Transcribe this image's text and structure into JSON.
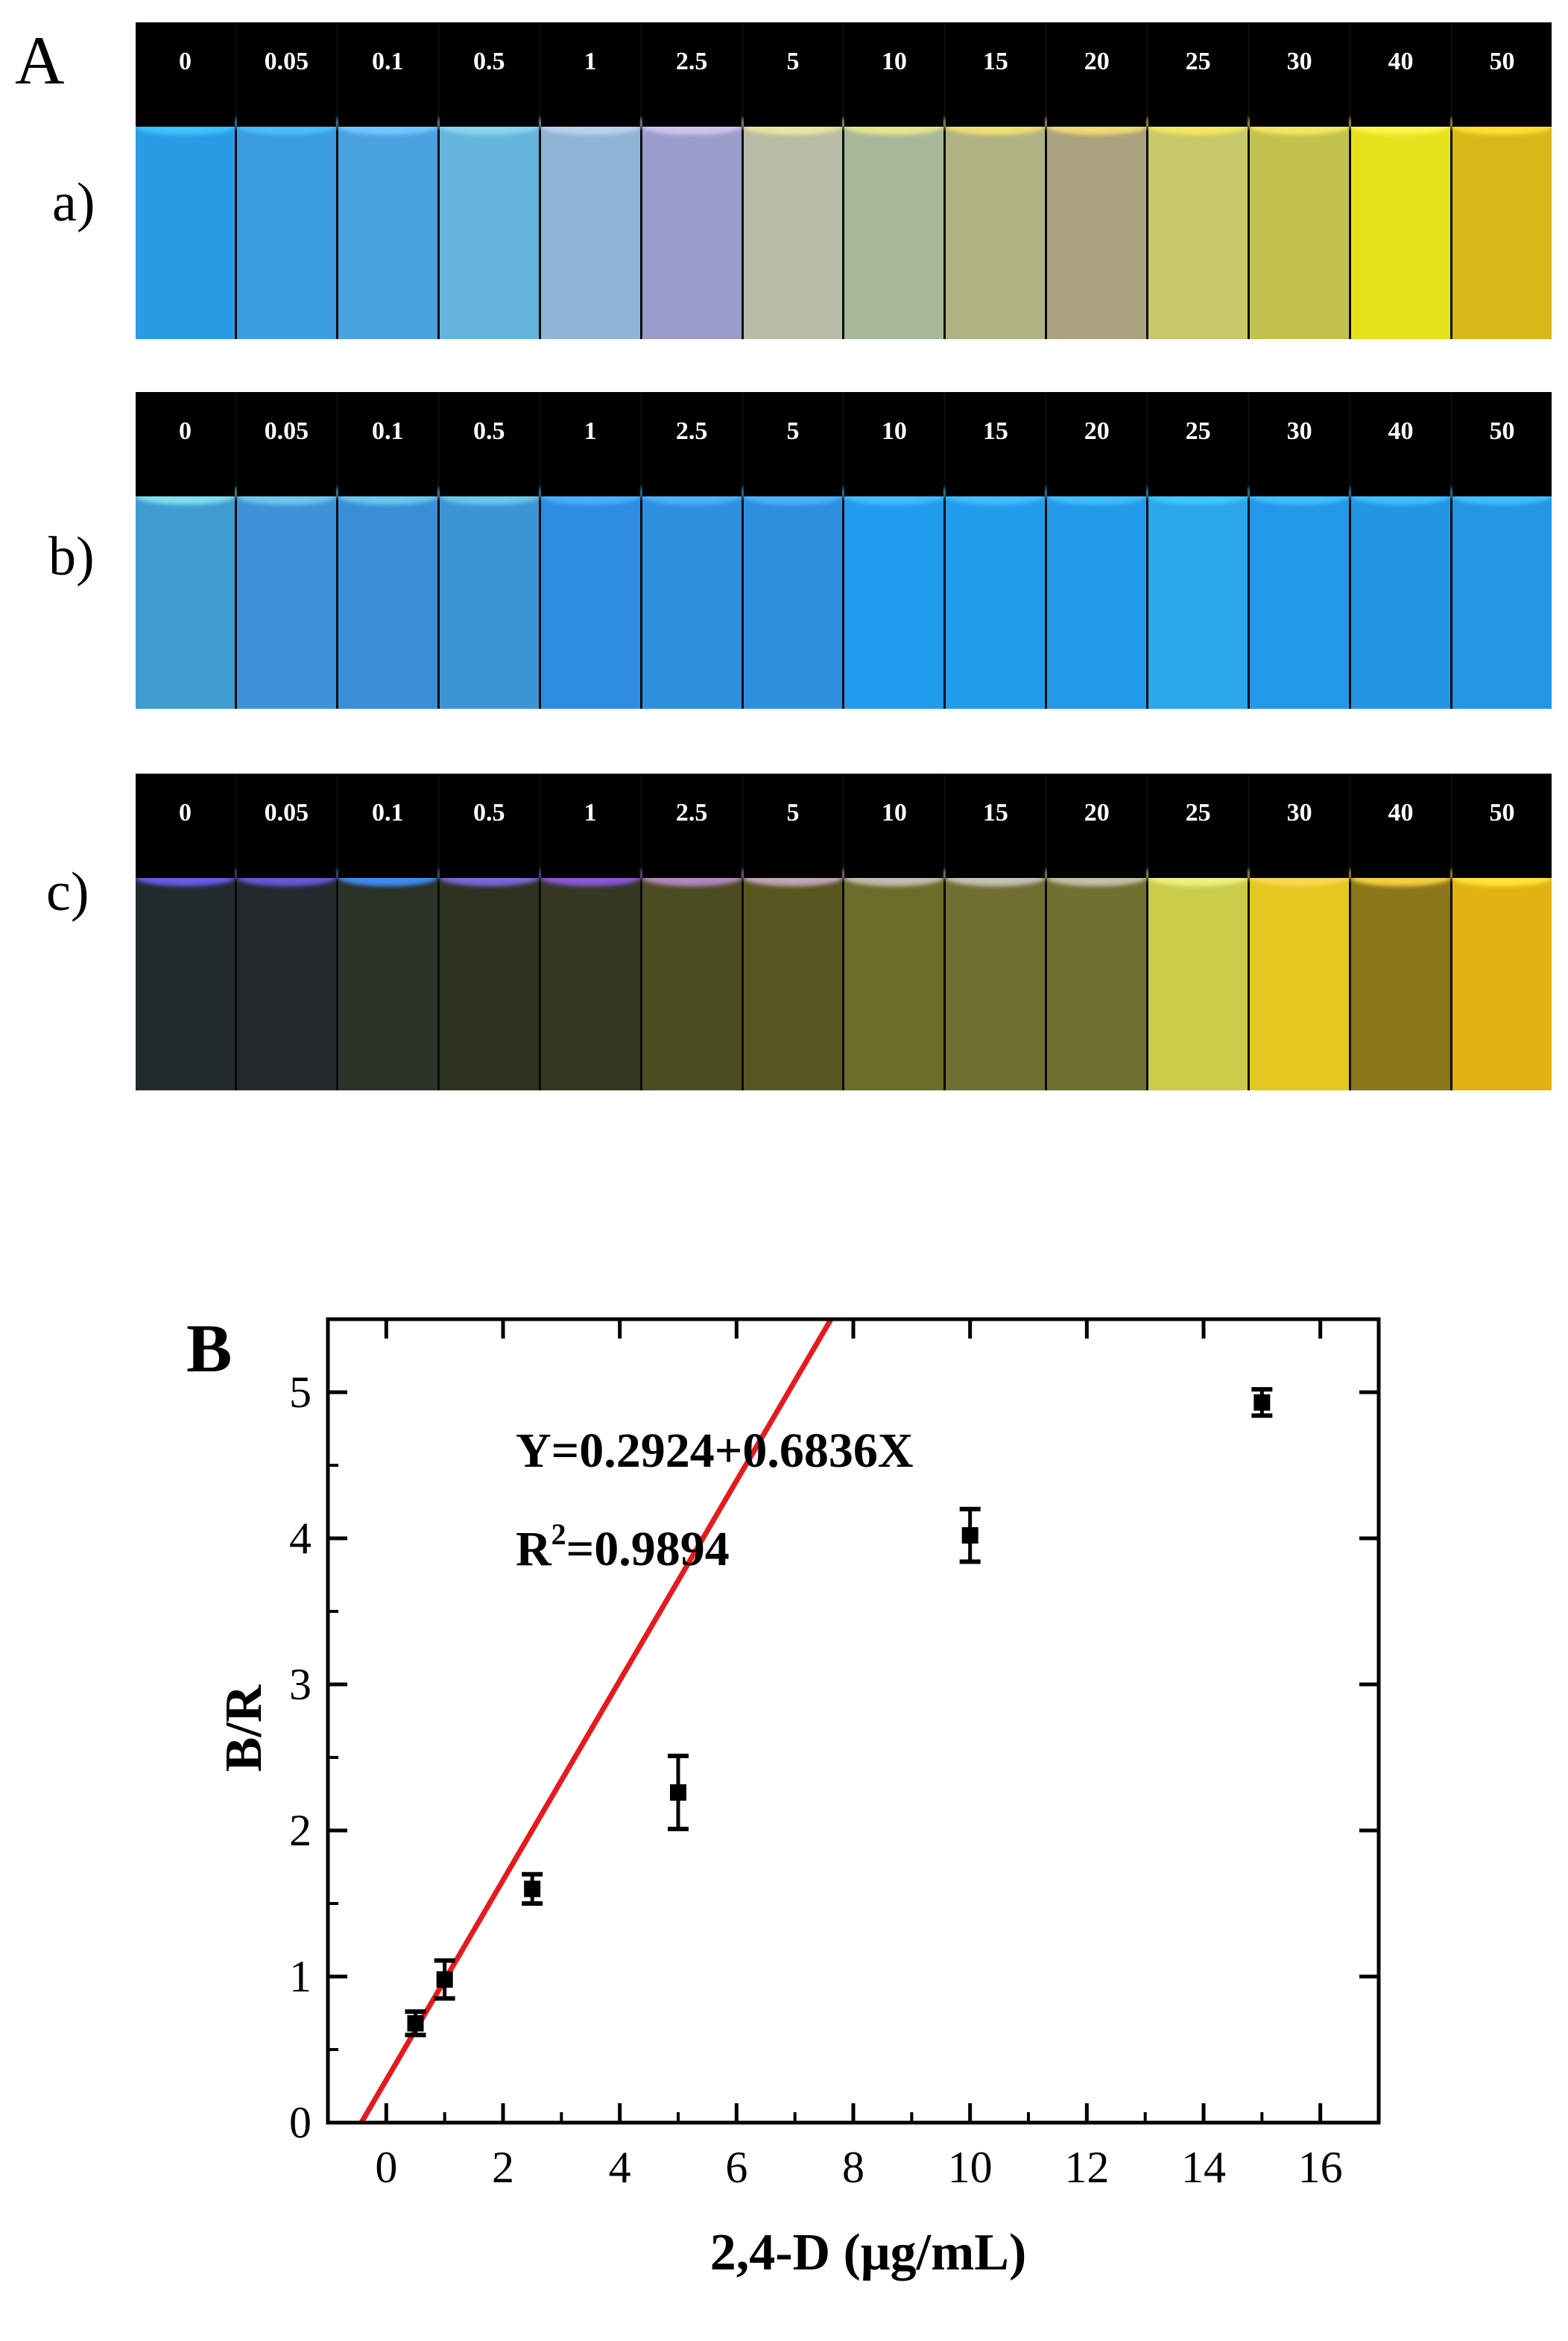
{
  "panel_a": {
    "letter": "A",
    "concentrations": [
      "0",
      "0.05",
      "0.1",
      "0.5",
      "1",
      "2.5",
      "5",
      "10",
      "15",
      "20",
      "25",
      "30",
      "40",
      "50"
    ],
    "rows": [
      {
        "label": "a)",
        "glow": [
          "#3fc4ff",
          "#47c0ff",
          "#6fc8ff",
          "#8ad6f0",
          "#b8d2ee",
          "#cfc4f0",
          "#e8e6a0",
          "#e6e68a",
          "#f0e070",
          "#f0dc70",
          "#f5e860",
          "#f5e860",
          "#fff44a",
          "#ffe030"
        ],
        "colors": [
          "#2a9ce6",
          "#3d9be0",
          "#4aa3e0",
          "#65b4dc",
          "#8fb4d8",
          "#9a9ccc",
          "#b9bca6",
          "#a7b89a",
          "#b0b284",
          "#aaa17e",
          "#c6c86a",
          "#c1c24e",
          "#e6e21c",
          "#d8b818"
        ]
      },
      {
        "label": "b)",
        "glow": [
          "#7ee0f0",
          "#70c8f0",
          "#6cc8f0",
          "#6cc8f0",
          "#4ab0ff",
          "#4ab4ff",
          "#4ab4ff",
          "#40c0ff",
          "#40c0ff",
          "#40c0ff",
          "#40c8ff",
          "#40c0ff",
          "#40c0ff",
          "#40c0ff"
        ],
        "colors": [
          "#3e9cd2",
          "#3e93d8",
          "#3a8ed8",
          "#3e95d5",
          "#2e8ce2",
          "#2f90e0",
          "#2f8fdf",
          "#219bed",
          "#219cec",
          "#229ae9",
          "#2ba6eb",
          "#2397e8",
          "#2395e4",
          "#2496e3"
        ]
      },
      {
        "label": "c)",
        "glow": [
          "#6a5ae6",
          "#6658d6",
          "#3f8cf0",
          "#7a66d8",
          "#8a58d8",
          "#b088c0",
          "#bfa6b8",
          "#c0bcb0",
          "#c4c2b4",
          "#c4c0a8",
          "#eef080",
          "#f8d850",
          "#f4d040",
          "#ffe43a"
        ],
        "colors": [
          "#222a2e",
          "#23292d",
          "#2b3226",
          "#2e3220",
          "#353722",
          "#4c4c22",
          "#58571f",
          "#6c6c2a",
          "#6f6f32",
          "#707030",
          "#cacb4a",
          "#e2c820",
          "#8c761c",
          "#e2b214"
        ]
      }
    ]
  },
  "chart_data": {
    "type": "scatter",
    "panel_letter": "B",
    "xlabel": "2,4-D (μg/mL)",
    "ylabel": "B/R",
    "xlim": [
      -1,
      17
    ],
    "ylim": [
      0,
      5.5
    ],
    "xticks": [
      0,
      2,
      4,
      6,
      8,
      10,
      12,
      14,
      16
    ],
    "yticks": [
      0,
      1,
      2,
      3,
      4,
      5
    ],
    "points": [
      {
        "x": 0.5,
        "y": 0.68,
        "err": 0.08
      },
      {
        "x": 1,
        "y": 0.98,
        "err": 0.13
      },
      {
        "x": 2.5,
        "y": 1.6,
        "err": 0.1
      },
      {
        "x": 5,
        "y": 2.26,
        "err": 0.25
      },
      {
        "x": 10,
        "y": 4.02,
        "err": 0.18
      },
      {
        "x": 15,
        "y": 4.93,
        "err": 0.09
      }
    ],
    "fit": {
      "intercept": 0.2924,
      "slope": 0.6836,
      "color": "#e8191d"
    },
    "annotations": {
      "equation": "Y=0.2924+0.6836X",
      "r2_prefix": "R",
      "r2_sup": "2",
      "r2_value": "=0.9894"
    },
    "grid": false
  }
}
